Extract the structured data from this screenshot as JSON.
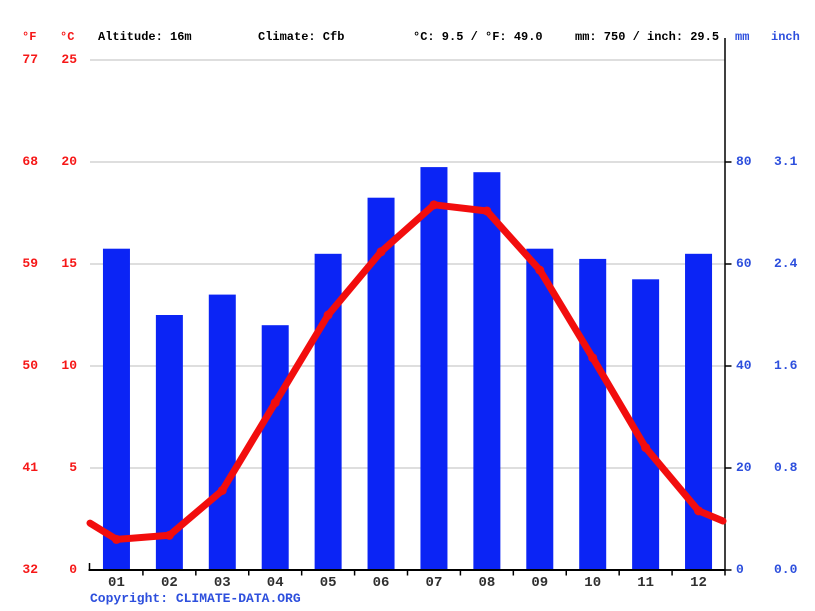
{
  "header": {
    "f_unit": "°F",
    "c_unit": "°C",
    "altitude": "Altitude: 16m",
    "climate": "Climate: Cfb",
    "temp_summary": "°C: 9.5 / °F: 49.0",
    "precip_summary": "mm: 750 / inch: 29.5",
    "mm_unit": "mm",
    "inch_unit": "inch"
  },
  "copyright": {
    "prefix": "Copyright: ",
    "link": "CLIMATE-DATA.ORG"
  },
  "colors": {
    "bar_blue": "#0b24f5",
    "line_red": "#f20d0d",
    "red_text": "#f61717",
    "blue_text": "#2d4fdd",
    "grid": "#cacaca",
    "axis": "#000000",
    "month_text": "#2f2f2f"
  },
  "chart_data": {
    "type": "bar+line",
    "title": "",
    "categories": [
      "01",
      "02",
      "03",
      "04",
      "05",
      "06",
      "07",
      "08",
      "09",
      "10",
      "11",
      "12"
    ],
    "series": [
      {
        "name": "precipitation_mm",
        "type": "bar",
        "values": [
          63,
          50,
          54,
          48,
          62,
          73,
          79,
          78,
          63,
          61,
          57,
          62
        ]
      },
      {
        "name": "temperature_c",
        "type": "line",
        "values": [
          1.5,
          1.7,
          3.9,
          8.2,
          12.5,
          15.6,
          17.9,
          17.6,
          14.7,
          10.4,
          6.0,
          2.9
        ],
        "edge_values": [
          2.3,
          2.4
        ]
      }
    ],
    "axis_left": {
      "f_ticks": [
        "77",
        "68",
        "59",
        "50",
        "41",
        "32"
      ],
      "c_ticks": [
        "25",
        "20",
        "15",
        "10",
        "5",
        "0"
      ],
      "c_range": [
        0,
        25
      ]
    },
    "axis_right": {
      "mm_ticks": [
        "80",
        "60",
        "40",
        "20",
        "0"
      ],
      "inch_ticks": [
        "3.1",
        "2.4",
        "1.6",
        "0.8",
        "0.0"
      ],
      "mm_per_gridline": 20
    },
    "grid": true,
    "legend": "none",
    "summary": {
      "avg_temp_c": 9.5,
      "avg_temp_f": 49.0,
      "annual_mm": 750,
      "annual_inch": 29.5
    }
  }
}
